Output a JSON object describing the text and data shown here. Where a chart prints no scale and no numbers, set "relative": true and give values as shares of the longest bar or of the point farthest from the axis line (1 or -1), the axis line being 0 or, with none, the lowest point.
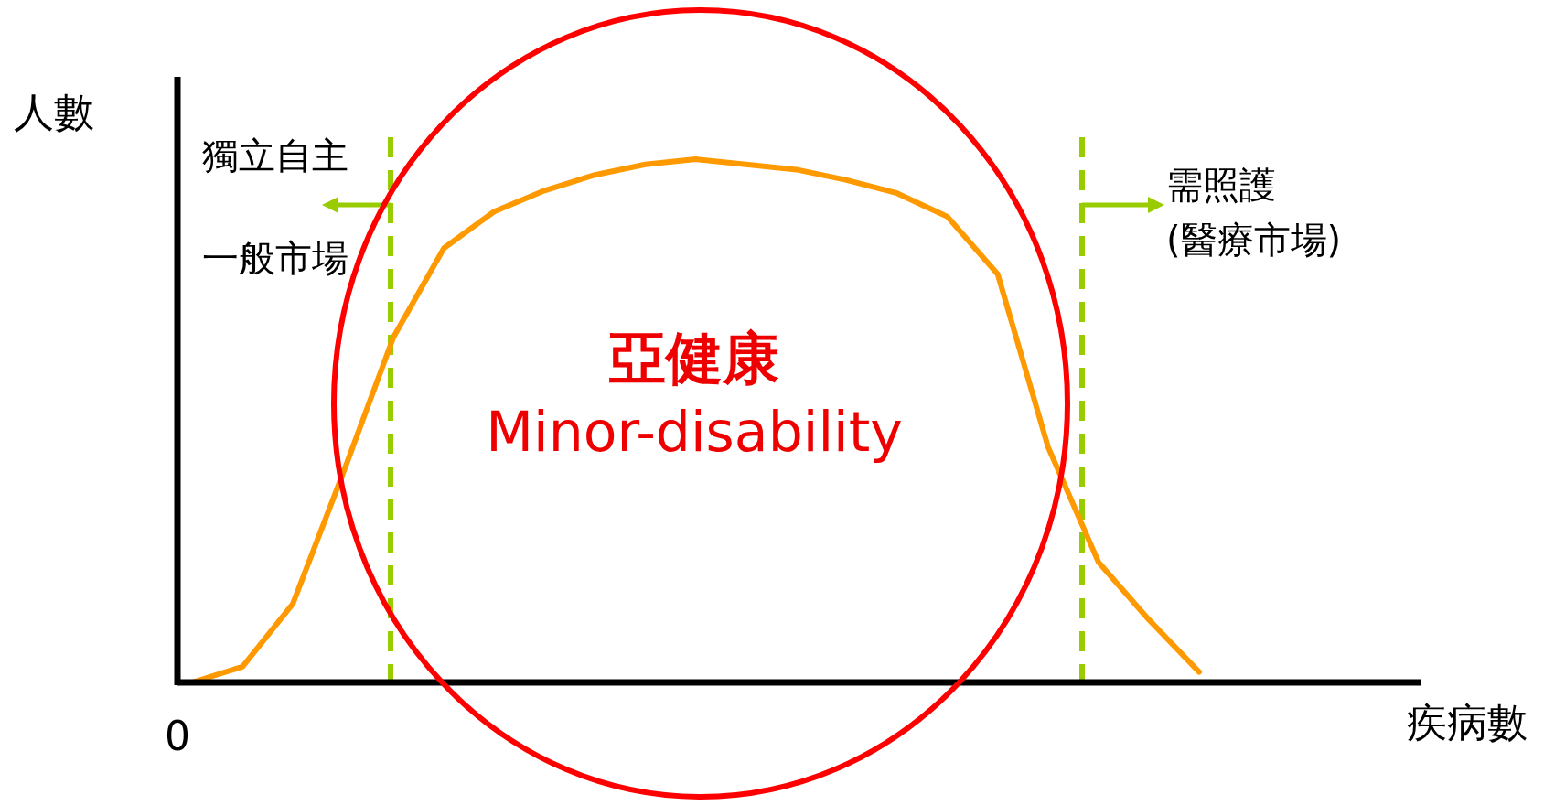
{
  "chart_data": {
    "type": "line",
    "relative": true,
    "xlabel": "疾病數",
    "ylabel": "人數",
    "categories": [
      null,
      null,
      null,
      null,
      null,
      null,
      null,
      null,
      null,
      null,
      null,
      null,
      null,
      null,
      null,
      null,
      null,
      null,
      null,
      null,
      null
    ],
    "series": [
      {
        "color": "#ff9900",
        "values": [
          0,
          0.03,
          0.15,
          0.4,
          0.66,
          0.83,
          0.9,
          0.94,
          0.97,
          0.99,
          1.0,
          0.99,
          0.98,
          0.96,
          0.935,
          0.89,
          0.78,
          0.45,
          0.23,
          0.12,
          0.02
        ]
      }
    ],
    "annotations": [
      "亞健康",
      "Minor-disability",
      "0",
      "獨立自主",
      "一般市場",
      "需照護",
      "(醫療市場)"
    ]
  }
}
